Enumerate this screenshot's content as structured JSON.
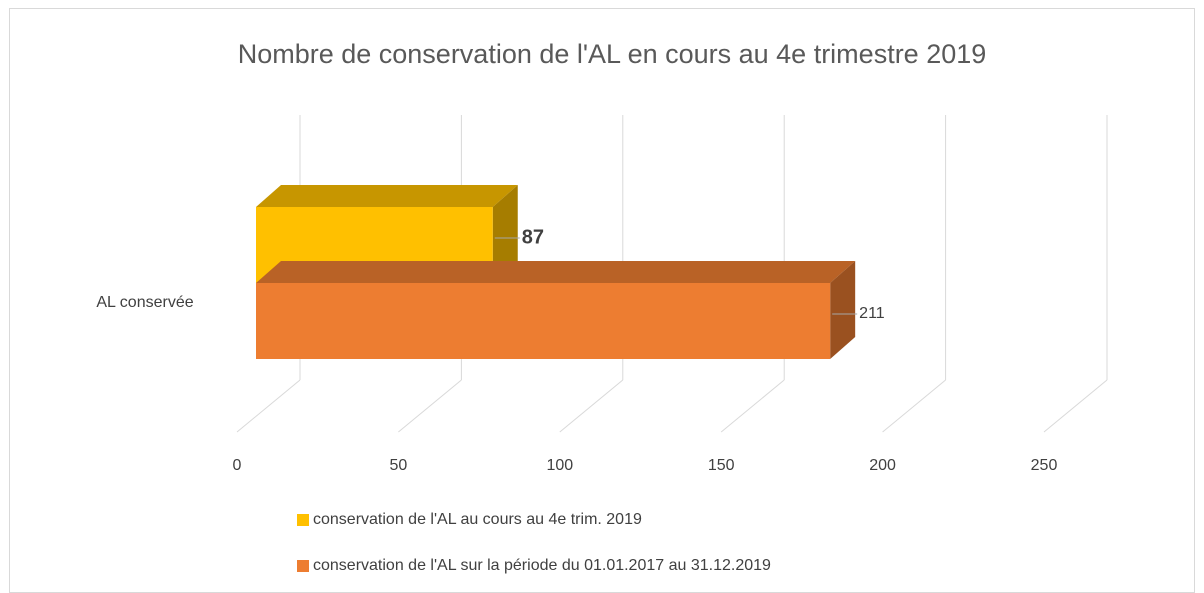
{
  "chart_data": {
    "type": "bar3d_horizontal",
    "title": "Nombre de conservation de l'AL en cours au 4e trimestre 2019",
    "categories": [
      "AL conservée"
    ],
    "series": [
      {
        "name": "conservation de l'AL au cours au 4e trim. 2019",
        "color": "#FFC000",
        "values": [
          87
        ]
      },
      {
        "name": "conservation de l'AL sur la période du 01.01.2017 au 31.12.2019",
        "color": "#ED7D31",
        "values": [
          211
        ]
      }
    ],
    "xlim": [
      0,
      250
    ],
    "xticks": [
      0,
      50,
      100,
      150,
      200,
      250
    ],
    "grid": true,
    "legend": "bottom"
  }
}
